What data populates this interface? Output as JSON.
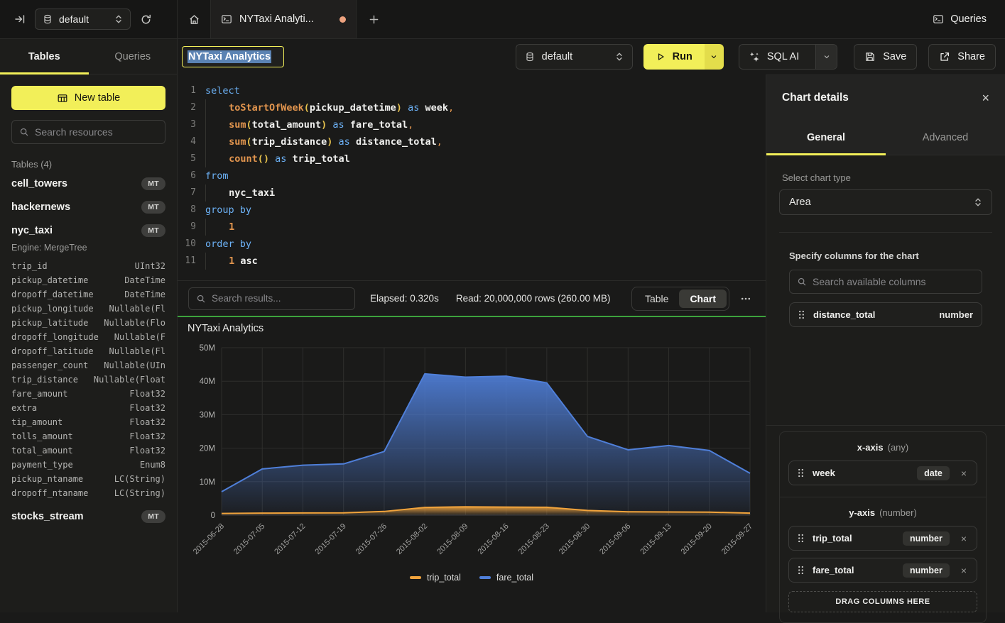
{
  "topbar": {
    "database": "default",
    "tab_title": "NYTaxi Analyti...",
    "queries_label": "Queries"
  },
  "sidebar": {
    "tabs": [
      "Tables",
      "Queries"
    ],
    "new_table_label": "New table",
    "search_placeholder": "Search resources",
    "section_header": "Tables (4)",
    "tables": [
      {
        "name": "cell_towers",
        "badge": "MT"
      },
      {
        "name": "hackernews",
        "badge": "MT"
      },
      {
        "name": "nyc_taxi",
        "badge": "MT",
        "engine": "Engine: MergeTree",
        "columns": [
          {
            "name": "trip_id",
            "type": "UInt32"
          },
          {
            "name": "pickup_datetime",
            "type": "DateTime"
          },
          {
            "name": "dropoff_datetime",
            "type": "DateTime"
          },
          {
            "name": "pickup_longitude",
            "type": "Nullable(Fl"
          },
          {
            "name": "pickup_latitude",
            "type": "Nullable(Flo"
          },
          {
            "name": "dropoff_longitude",
            "type": "Nullable(F"
          },
          {
            "name": "dropoff_latitude",
            "type": "Nullable(Fl"
          },
          {
            "name": "passenger_count",
            "type": "Nullable(UIn"
          },
          {
            "name": "trip_distance",
            "type": "Nullable(Float"
          },
          {
            "name": "fare_amount",
            "type": "Float32"
          },
          {
            "name": "extra",
            "type": "Float32"
          },
          {
            "name": "tip_amount",
            "type": "Float32"
          },
          {
            "name": "tolls_amount",
            "type": "Float32"
          },
          {
            "name": "total_amount",
            "type": "Float32"
          },
          {
            "name": "payment_type",
            "type": "Enum8"
          },
          {
            "name": "pickup_ntaname",
            "type": "LC(String)"
          },
          {
            "name": "dropoff_ntaname",
            "type": "LC(String)"
          }
        ]
      },
      {
        "name": "stocks_stream",
        "badge": "MT"
      }
    ]
  },
  "toolbar": {
    "query_title": "NYTaxi Analytics",
    "database": "default",
    "run_label": "Run",
    "sql_ai_label": "SQL AI",
    "save_label": "Save",
    "share_label": "Share"
  },
  "editor": {
    "lines": [
      [
        {
          "t": "select",
          "c": "kw"
        }
      ],
      [
        {
          "t": "    ",
          "c": "ws"
        },
        {
          "t": "toStartOfWeek",
          "c": "fn"
        },
        {
          "t": "(",
          "c": "pr"
        },
        {
          "t": "pickup_datetime",
          "c": "id"
        },
        {
          "t": ")",
          "c": "pr"
        },
        {
          "t": " ",
          "c": "tx"
        },
        {
          "t": "as",
          "c": "kw"
        },
        {
          "t": " ",
          "c": "tx"
        },
        {
          "t": "week",
          "c": "id"
        },
        {
          "t": ",",
          "c": "pu"
        }
      ],
      [
        {
          "t": "    ",
          "c": "ws"
        },
        {
          "t": "sum",
          "c": "fn"
        },
        {
          "t": "(",
          "c": "pr"
        },
        {
          "t": "total_amount",
          "c": "id"
        },
        {
          "t": ")",
          "c": "pr"
        },
        {
          "t": " ",
          "c": "tx"
        },
        {
          "t": "as",
          "c": "kw"
        },
        {
          "t": " ",
          "c": "tx"
        },
        {
          "t": "fare_total",
          "c": "id"
        },
        {
          "t": ",",
          "c": "pu"
        }
      ],
      [
        {
          "t": "    ",
          "c": "ws"
        },
        {
          "t": "sum",
          "c": "fn"
        },
        {
          "t": "(",
          "c": "pr"
        },
        {
          "t": "trip_distance",
          "c": "id"
        },
        {
          "t": ")",
          "c": "pr"
        },
        {
          "t": " ",
          "c": "tx"
        },
        {
          "t": "as",
          "c": "kw"
        },
        {
          "t": " ",
          "c": "tx"
        },
        {
          "t": "distance_total",
          "c": "id"
        },
        {
          "t": ",",
          "c": "pu"
        }
      ],
      [
        {
          "t": "    ",
          "c": "ws"
        },
        {
          "t": "count",
          "c": "fn"
        },
        {
          "t": "()",
          "c": "pr"
        },
        {
          "t": " ",
          "c": "tx"
        },
        {
          "t": "as",
          "c": "kw"
        },
        {
          "t": " ",
          "c": "tx"
        },
        {
          "t": "trip_total",
          "c": "id"
        }
      ],
      [
        {
          "t": "from",
          "c": "kw"
        }
      ],
      [
        {
          "t": "    ",
          "c": "ws"
        },
        {
          "t": "nyc_taxi",
          "c": "id"
        }
      ],
      [
        {
          "t": "group by",
          "c": "kw"
        }
      ],
      [
        {
          "t": "    ",
          "c": "ws"
        },
        {
          "t": "1",
          "c": "num"
        }
      ],
      [
        {
          "t": "order by",
          "c": "kw"
        }
      ],
      [
        {
          "t": "    ",
          "c": "ws"
        },
        {
          "t": "1",
          "c": "num"
        },
        {
          "t": " ",
          "c": "tx"
        },
        {
          "t": "asc",
          "c": "id"
        }
      ]
    ]
  },
  "results": {
    "search_placeholder": "Search results...",
    "elapsed": "Elapsed: 0.320s",
    "read": "Read: 20,000,000 rows (260.00 MB)",
    "views": [
      "Table",
      "Chart"
    ],
    "active_view": "Chart"
  },
  "chart_data": {
    "type": "area",
    "title": "NYTaxi Analytics",
    "x": [
      "2015-06-28",
      "2015-07-05",
      "2015-07-12",
      "2015-07-19",
      "2015-07-26",
      "2015-08-02",
      "2015-08-09",
      "2015-08-16",
      "2015-08-23",
      "2015-08-30",
      "2015-09-06",
      "2015-09-13",
      "2015-09-20",
      "2015-09-27"
    ],
    "xlabel": "week",
    "ylabel": "",
    "values_unit": "millions",
    "ylim": [
      0,
      50
    ],
    "yticks": [
      "0",
      "10M",
      "20M",
      "30M",
      "40M",
      "50M"
    ],
    "grid": true,
    "legend_position": "bottom",
    "series": [
      {
        "name": "trip_total",
        "color": "#f0a33c",
        "values": [
          0.5,
          0.6,
          0.65,
          0.7,
          1.1,
          2.3,
          2.5,
          2.4,
          2.35,
          1.4,
          1.0,
          0.95,
          0.9,
          0.6
        ]
      },
      {
        "name": "fare_total",
        "color": "#4f7fd9",
        "values": [
          7,
          13.8,
          14.9,
          15.3,
          19,
          42.2,
          41.2,
          41.5,
          39.5,
          23.5,
          19.5,
          20.8,
          19.3,
          12.5
        ]
      }
    ]
  },
  "panel": {
    "title": "Chart details",
    "tabs": [
      "General",
      "Advanced"
    ],
    "active_tab": "General",
    "chart_type_label": "Select chart type",
    "chart_type_value": "Area",
    "columns_label": "Specify columns for the chart",
    "search_placeholder": "Search available columns",
    "available_columns": [
      {
        "name": "distance_total",
        "type": "number"
      }
    ],
    "x_axis": {
      "title": "x-axis",
      "hint": "(any)",
      "chips": [
        {
          "name": "week",
          "badge": "date"
        }
      ]
    },
    "y_axis": {
      "title": "y-axis",
      "hint": "(number)",
      "chips": [
        {
          "name": "trip_total",
          "badge": "number"
        },
        {
          "name": "fare_total",
          "badge": "number"
        }
      ]
    },
    "drop_zone_label": "DRAG COLUMNS HERE"
  },
  "colors": {
    "accent_yellow": "#f2ef59",
    "run_arrow_yellow": "#e3dd4b",
    "success_line_green": "#3da33d",
    "chart_blue": "#4f7fd9",
    "chart_orange": "#f0a33c",
    "tab_dot_orange": "#eda27f",
    "selection_blue": "#5b83b3"
  }
}
